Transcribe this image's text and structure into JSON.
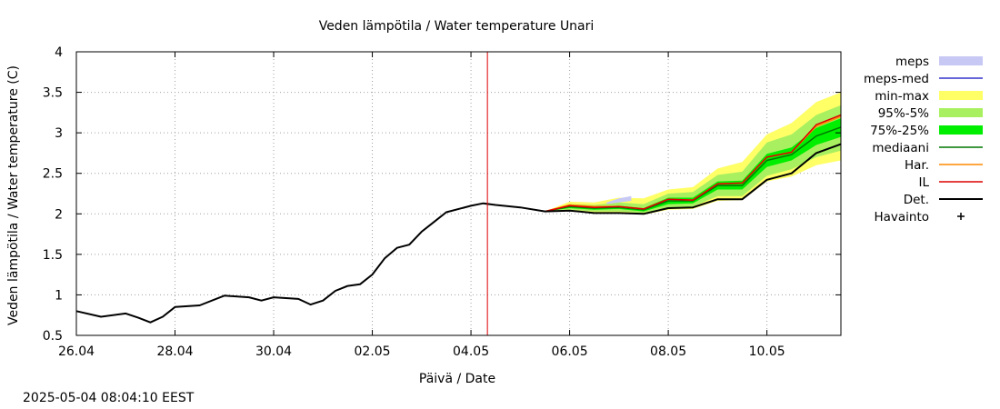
{
  "chart_data": {
    "type": "line",
    "title": "Veden lämpötila / Water temperature Unari",
    "xlabel": "Päivä / Date",
    "ylabel": "Veden lämpötila / Water temperature (C)",
    "x_range": [
      "2025-04-26T00:00",
      "2025-05-11T12:00"
    ],
    "ylim": [
      0.5,
      4
    ],
    "y_ticks": [
      "0.5",
      "1",
      "1.5",
      "2",
      "2.5",
      "3",
      "3.5",
      "4"
    ],
    "x_ticks": [
      {
        "label": "26.04",
        "date": "2025-04-26"
      },
      {
        "label": "28.04",
        "date": "2025-04-28"
      },
      {
        "label": "30.04",
        "date": "2025-04-30"
      },
      {
        "label": "02.05",
        "date": "2025-05-02"
      },
      {
        "label": "04.05",
        "date": "2025-05-04"
      },
      {
        "label": "06.05",
        "date": "2025-05-06"
      },
      {
        "label": "08.05",
        "date": "2025-05-08"
      },
      {
        "label": "10.05",
        "date": "2025-05-10"
      }
    ],
    "grid": true,
    "legend_position": "right",
    "current_time_marker": "2025-05-04T08:00",
    "colors": {
      "meps": "#c8c8f5",
      "meps_med": "#3333cc",
      "minmax": "#ffff66",
      "p95_5": "#a8f060",
      "p75_25": "#00ee00",
      "median": "#007700",
      "har": "#ff8800",
      "il": "#dd0000",
      "det": "#000000",
      "marker": "#dd0000"
    },
    "legend": [
      {
        "key": "meps",
        "label": "meps",
        "style": "fill"
      },
      {
        "key": "meps_med",
        "label": "meps-med",
        "style": "line"
      },
      {
        "key": "minmax",
        "label": "min-max",
        "style": "fill"
      },
      {
        "key": "p95_5",
        "label": "95%-5%",
        "style": "fill"
      },
      {
        "key": "p75_25",
        "label": "75%-25%",
        "style": "fill"
      },
      {
        "key": "median",
        "label": "mediaani",
        "style": "line"
      },
      {
        "key": "har",
        "label": "Har.",
        "style": "line"
      },
      {
        "key": "il",
        "label": "IL",
        "style": "line"
      },
      {
        "key": "det",
        "label": "Det.",
        "style": "line"
      },
      {
        "key": "havainto",
        "label": "Havainto",
        "style": "plus"
      }
    ],
    "det_series": [
      [
        "2025-04-26T00:00",
        0.8
      ],
      [
        "2025-04-26T12:00",
        0.73
      ],
      [
        "2025-04-27T00:00",
        0.77
      ],
      [
        "2025-04-27T06:00",
        0.72
      ],
      [
        "2025-04-27T12:00",
        0.66
      ],
      [
        "2025-04-27T18:00",
        0.73
      ],
      [
        "2025-04-28T00:00",
        0.85
      ],
      [
        "2025-04-28T12:00",
        0.87
      ],
      [
        "2025-04-29T00:00",
        0.99
      ],
      [
        "2025-04-29T12:00",
        0.97
      ],
      [
        "2025-04-29T18:00",
        0.93
      ],
      [
        "2025-04-30T00:00",
        0.97
      ],
      [
        "2025-04-30T12:00",
        0.95
      ],
      [
        "2025-04-30T18:00",
        0.88
      ],
      [
        "2025-05-01T00:00",
        0.93
      ],
      [
        "2025-05-01T06:00",
        1.05
      ],
      [
        "2025-05-01T12:00",
        1.11
      ],
      [
        "2025-05-01T18:00",
        1.13
      ],
      [
        "2025-05-02T00:00",
        1.25
      ],
      [
        "2025-05-02T06:00",
        1.45
      ],
      [
        "2025-05-02T12:00",
        1.58
      ],
      [
        "2025-05-02T18:00",
        1.62
      ],
      [
        "2025-05-03T00:00",
        1.78
      ],
      [
        "2025-05-03T06:00",
        1.9
      ],
      [
        "2025-05-03T12:00",
        2.02
      ],
      [
        "2025-05-04T00:00",
        2.1
      ],
      [
        "2025-05-04T06:00",
        2.13
      ],
      [
        "2025-05-04T12:00",
        2.11
      ],
      [
        "2025-05-05T00:00",
        2.08
      ],
      [
        "2025-05-05T12:00",
        2.03
      ],
      [
        "2025-05-06T00:00",
        2.04
      ],
      [
        "2025-05-06T12:00",
        2.01
      ],
      [
        "2025-05-07T00:00",
        2.01
      ],
      [
        "2025-05-07T12:00",
        2.0
      ],
      [
        "2025-05-08T00:00",
        2.07
      ],
      [
        "2025-05-08T12:00",
        2.08
      ],
      [
        "2025-05-09T00:00",
        2.18
      ],
      [
        "2025-05-09T12:00",
        2.18
      ],
      [
        "2025-05-10T00:00",
        2.42
      ],
      [
        "2025-05-10T12:00",
        2.5
      ],
      [
        "2025-05-11T00:00",
        2.75
      ],
      [
        "2025-05-11T12:00",
        2.86
      ]
    ],
    "forecast": [
      {
        "x": "2025-05-05T12:00",
        "min": 2.03,
        "p5": 2.03,
        "p25": 2.03,
        "median": 2.03,
        "p75": 2.03,
        "p95": 2.03,
        "max": 2.03,
        "il": 2.03,
        "har": 2.03
      },
      {
        "x": "2025-05-06T00:00",
        "min": 2.04,
        "p5": 2.05,
        "p25": 2.07,
        "median": 2.09,
        "p75": 2.1,
        "p95": 2.12,
        "max": 2.15,
        "il": 2.1,
        "har": 2.11
      },
      {
        "x": "2025-05-06T12:00",
        "min": 2.01,
        "p5": 2.03,
        "p25": 2.05,
        "median": 2.07,
        "p75": 2.09,
        "p95": 2.11,
        "max": 2.14,
        "il": 2.08,
        "har": 2.09
      },
      {
        "x": "2025-05-07T00:00",
        "min": 2.01,
        "p5": 2.03,
        "p25": 2.06,
        "median": 2.08,
        "p75": 2.1,
        "p95": 2.14,
        "max": 2.2,
        "il": 2.09,
        "har": 2.09
      },
      {
        "x": "2025-05-07T12:00",
        "min": 1.99,
        "p5": 2.01,
        "p25": 2.03,
        "median": 2.05,
        "p75": 2.07,
        "p95": 2.12,
        "max": 2.19,
        "il": 2.06,
        "har": 2.06
      },
      {
        "x": "2025-05-08T00:00",
        "min": 2.05,
        "p5": 2.08,
        "p25": 2.12,
        "median": 2.16,
        "p75": 2.2,
        "p95": 2.25,
        "max": 2.3,
        "il": 2.18,
        "har": 2.18
      },
      {
        "x": "2025-05-08T12:00",
        "min": 2.06,
        "p5": 2.09,
        "p25": 2.13,
        "median": 2.16,
        "p75": 2.2,
        "p95": 2.27,
        "max": 2.33,
        "il": 2.17,
        "har": 2.17
      },
      {
        "x": "2025-05-09T00:00",
        "min": 2.16,
        "p5": 2.22,
        "p25": 2.3,
        "median": 2.35,
        "p75": 2.4,
        "p95": 2.48,
        "max": 2.56,
        "il": 2.37,
        "har": 2.37
      },
      {
        "x": "2025-05-09T12:00",
        "min": 2.17,
        "p5": 2.22,
        "p25": 2.3,
        "median": 2.35,
        "p75": 2.41,
        "p95": 2.52,
        "max": 2.64,
        "il": 2.38,
        "har": 2.38
      },
      {
        "x": "2025-05-10T00:00",
        "min": 2.4,
        "p5": 2.47,
        "p25": 2.58,
        "median": 2.66,
        "p75": 2.74,
        "p95": 2.88,
        "max": 2.98,
        "il": 2.7,
        "har": 2.7
      },
      {
        "x": "2025-05-10T12:00",
        "min": 2.46,
        "p5": 2.55,
        "p25": 2.66,
        "median": 2.73,
        "p75": 2.82,
        "p95": 2.98,
        "max": 3.12,
        "il": 2.76,
        "har": 2.76
      },
      {
        "x": "2025-05-11T00:00",
        "min": 2.6,
        "p5": 2.7,
        "p25": 2.85,
        "median": 2.96,
        "p75": 3.06,
        "p95": 3.22,
        "max": 3.38,
        "il": 3.1,
        "har": 3.08
      },
      {
        "x": "2025-05-11T12:00",
        "min": 2.66,
        "p5": 2.78,
        "p25": 2.95,
        "median": 3.07,
        "p75": 3.18,
        "p95": 3.34,
        "max": 3.5,
        "il": 3.22,
        "har": 3.2
      }
    ],
    "meps_band": [
      {
        "x": "2025-05-06T18:00",
        "low": 2.12,
        "high": 2.14
      },
      {
        "x": "2025-05-07T00:00",
        "low": 2.14,
        "high": 2.19
      },
      {
        "x": "2025-05-07T06:00",
        "low": 2.16,
        "high": 2.22
      }
    ]
  },
  "timestamp": "2025-05-04 08:04:10 EEST"
}
